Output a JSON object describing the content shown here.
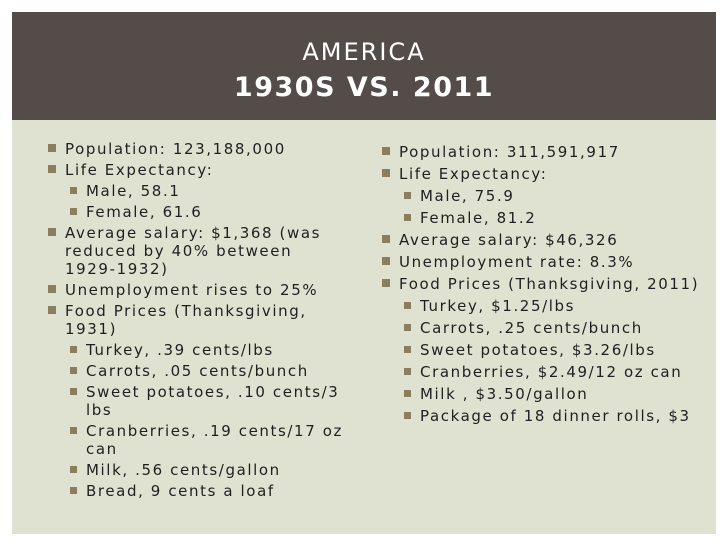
{
  "slide": {
    "title_line1": "AMERICA",
    "title_line2": "1930S VS. 2011"
  },
  "left_column": {
    "items": [
      {
        "text": "Population: 123,188,000"
      },
      {
        "text": "Life Expectancy:"
      },
      {
        "text": "Male, 58.1"
      },
      {
        "text": "Female, 61.6"
      },
      {
        "text": "Average salary: $1,368 (was reduced by 40% between 1929-1932)"
      },
      {
        "text": "Unemployment rises to 25%"
      },
      {
        "text": "Food Prices (Thanksgiving, 1931)"
      },
      {
        "text": "Turkey, .39 cents/lbs"
      },
      {
        "text": "Carrots, .05 cents/bunch"
      },
      {
        "text": "Sweet potatoes, .10 cents/3 lbs"
      },
      {
        "text": "Cranberries, .19 cents/17 oz can"
      },
      {
        "text": "Milk, .56 cents/gallon"
      },
      {
        "text": "Bread, 9 cents a loaf"
      }
    ]
  },
  "right_column": {
    "items": [
      {
        "text": "Population: 311,591,917"
      },
      {
        "text": "Life Expectancy:"
      },
      {
        "text": "Male, 75.9"
      },
      {
        "text": "Female, 81.2"
      },
      {
        "text": "Average salary: $46,326"
      },
      {
        "text": "Unemployment rate: 8.3%"
      },
      {
        "text": "Food Prices (Thanksgiving, 2011)"
      },
      {
        "text": "Turkey, $1.25/lbs"
      },
      {
        "text": "Carrots, .25 cents/bunch"
      },
      {
        "text": "Sweet potatoes, $3.26/lbs"
      },
      {
        "text": "Cranberries, $2.49/12 oz can"
      },
      {
        "text": "Milk , $3.50/gallon"
      },
      {
        "text": "Package of 18 dinner rolls, $3"
      }
    ]
  },
  "colors": {
    "title_bar": "#544c49",
    "panel": "#dfe2d0",
    "bullet": "#8b7e5f",
    "text": "#1f1f1f"
  }
}
